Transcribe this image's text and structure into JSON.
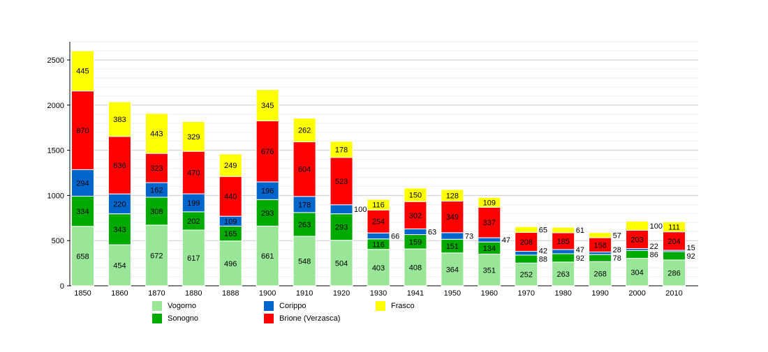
{
  "chart_data": {
    "type": "bar",
    "stacked": true,
    "categories": [
      "1850",
      "1860",
      "1870",
      "1880",
      "1888",
      "1900",
      "1910",
      "1920",
      "1930",
      "1941",
      "1950",
      "1960",
      "1970",
      "1980",
      "1990",
      "2000",
      "2010"
    ],
    "series": [
      {
        "name": "Vogorno",
        "color": "#99e699",
        "values": [
          658,
          454,
          672,
          617,
          496,
          661,
          548,
          504,
          403,
          408,
          364,
          351,
          252,
          263,
          268,
          304,
          286
        ]
      },
      {
        "name": "Sonogno",
        "color": "#00aa00",
        "values": [
          334,
          343,
          308,
          202,
          165,
          293,
          263,
          293,
          116,
          159,
          151,
          134,
          88,
          92,
          78,
          86,
          92
        ]
      },
      {
        "name": "Corippo",
        "color": "#0066cc",
        "values": [
          294,
          220,
          162,
          199,
          109,
          196,
          178,
          100,
          66,
          63,
          73,
          47,
          42,
          47,
          28,
          22,
          15
        ]
      },
      {
        "name": "Brione (Verzasca)",
        "color": "#ff0000",
        "values": [
          870,
          636,
          323,
          470,
          440,
          676,
          604,
          523,
          254,
          302,
          349,
          337,
          208,
          185,
          158,
          203,
          204
        ]
      },
      {
        "name": "Frasco",
        "color": "#ffff00",
        "values": [
          445,
          383,
          443,
          329,
          249,
          345,
          262,
          178,
          116,
          150,
          128,
          109,
          65,
          61,
          57,
          100,
          111
        ]
      }
    ],
    "yticks": [
      0,
      500,
      1000,
      1500,
      2000,
      2500
    ],
    "ylim": [
      0,
      2700
    ],
    "grid": true,
    "legend": "bottom"
  }
}
